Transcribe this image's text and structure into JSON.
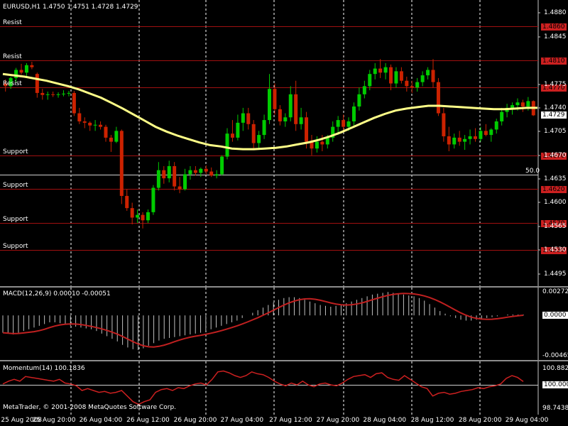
{
  "colors": {
    "background": "#000000",
    "bull_candle": "#00cc00",
    "bear_candle": "#cc2200",
    "level_line": "#a01010",
    "ma_line": "#ffff88",
    "macd_signal": "#c02020",
    "momentum_line": "#cc2020",
    "grid": "#ffffff",
    "price_box_red": "#cc2020",
    "text": "#ffffff"
  },
  "main_chart": {
    "header": "EURUSD,H1  1.4750 1.4751 1.4728 1.4729",
    "current_price": "1.4729",
    "ma_label": "50.0",
    "price_ticks": [
      "1.4880",
      "1.4845",
      "1.4775",
      "1.4740",
      "1.4705",
      "1.4670",
      "1.4635",
      "1.4600",
      "1.4565",
      "1.4530",
      "1.4495"
    ],
    "levels": [
      {
        "label": "Resist",
        "value": "1.4860"
      },
      {
        "label": "Resist",
        "value": "1.4810"
      },
      {
        "label": "Resist",
        "value": "1.4770"
      },
      {
        "label": "Support",
        "value": "1.4670"
      },
      {
        "label": "Support",
        "value": "1.4620"
      },
      {
        "label": "Support",
        "value": "1.4570"
      },
      {
        "label": "Support",
        "value": "1.4530"
      }
    ],
    "time_labels": [
      "25 Aug 2008",
      "25 Aug 20:00",
      "26 Aug 04:00",
      "26 Aug 12:00",
      "26 Aug 20:00",
      "27 Aug 04:00",
      "27 Aug 12:00",
      "27 Aug 20:00",
      "28 Aug 04:00",
      "28 Aug 12:00",
      "28 Aug 20:00",
      "29 Aug 04:00"
    ]
  },
  "macd_pane": {
    "title": "MACD(12,26,9) 0.00010 -0.00051",
    "ticks": [
      "0.00272",
      "0.0000",
      "-0.00465"
    ]
  },
  "momentum_pane": {
    "title": "Momentum(14) 100.1836",
    "ticks": [
      "100.8826",
      "100.0000",
      "98.7438"
    ]
  },
  "watermark": "MetaTrader, © 2001-2008 MetaQuotes Software Corp.",
  "chart_data": {
    "type": "candlestick",
    "symbol": "EURUSD",
    "timeframe": "H1",
    "ylim": [
      1.448,
      1.4895
    ],
    "candles": [
      [
        1.4776,
        1.4782,
        1.4764,
        1.4772
      ],
      [
        1.4772,
        1.4786,
        1.4768,
        1.4784
      ],
      [
        1.4784,
        1.4799,
        1.4778,
        1.4796
      ],
      [
        1.4796,
        1.4805,
        1.4789,
        1.4792
      ],
      [
        1.4792,
        1.4806,
        1.4786,
        1.4803
      ],
      [
        1.4803,
        1.4808,
        1.4797,
        1.48
      ],
      [
        1.479,
        1.4792,
        1.4755,
        1.4762
      ],
      [
        1.4762,
        1.4768,
        1.4752,
        1.4759
      ],
      [
        1.4759,
        1.4764,
        1.4752,
        1.476
      ],
      [
        1.476,
        1.4764,
        1.4756,
        1.4759
      ],
      [
        1.4759,
        1.4763,
        1.4755,
        1.476
      ],
      [
        1.476,
        1.4766,
        1.4757,
        1.4761
      ],
      [
        1.4761,
        1.4765,
        1.4757,
        1.4762
      ],
      [
        1.4762,
        1.4765,
        1.4728,
        1.4732
      ],
      [
        1.4732,
        1.474,
        1.4716,
        1.472
      ],
      [
        1.472,
        1.4726,
        1.471,
        1.4718
      ],
      [
        1.4718,
        1.472,
        1.4706,
        1.4714
      ],
      [
        1.4714,
        1.4722,
        1.4706,
        1.4715
      ],
      [
        1.4715,
        1.472,
        1.4708,
        1.4712
      ],
      [
        1.4712,
        1.4715,
        1.469,
        1.4696
      ],
      [
        1.4696,
        1.47,
        1.4675,
        1.469
      ],
      [
        1.469,
        1.4712,
        1.4688,
        1.4706
      ],
      [
        1.4706,
        1.4708,
        1.4598,
        1.461
      ],
      [
        1.461,
        1.462,
        1.4588,
        1.4592
      ],
      [
        1.4592,
        1.46,
        1.4568,
        1.4578
      ],
      [
        1.4578,
        1.459,
        1.457,
        1.4582
      ],
      [
        1.4582,
        1.4586,
        1.4562,
        1.4574
      ],
      [
        1.4574,
        1.459,
        1.457,
        1.4586
      ],
      [
        1.4586,
        1.4626,
        1.4582,
        1.4622
      ],
      [
        1.4622,
        1.466,
        1.4618,
        1.4648
      ],
      [
        1.4648,
        1.4654,
        1.4628,
        1.4636
      ],
      [
        1.4636,
        1.4662,
        1.463,
        1.4654
      ],
      [
        1.4654,
        1.466,
        1.4618,
        1.4624
      ],
      [
        1.4624,
        1.4638,
        1.4614,
        1.462
      ],
      [
        1.462,
        1.465,
        1.4618,
        1.4642
      ],
      [
        1.4642,
        1.4654,
        1.4634,
        1.4648
      ],
      [
        1.4648,
        1.4654,
        1.464,
        1.4644
      ],
      [
        1.4644,
        1.4652,
        1.4638,
        1.465
      ],
      [
        1.465,
        1.4655,
        1.4642,
        1.4646
      ],
      [
        1.4646,
        1.4652,
        1.4638,
        1.464
      ],
      [
        1.464,
        1.4648,
        1.4636,
        1.4642
      ],
      [
        1.4642,
        1.467,
        1.464,
        1.4668
      ],
      [
        1.4668,
        1.471,
        1.4664,
        1.4702
      ],
      [
        1.4702,
        1.4722,
        1.469,
        1.4696
      ],
      [
        1.4696,
        1.473,
        1.4692,
        1.4718
      ],
      [
        1.4718,
        1.474,
        1.4706,
        1.4732
      ],
      [
        1.4732,
        1.474,
        1.4708,
        1.4716
      ],
      [
        1.4716,
        1.4722,
        1.468,
        1.4688
      ],
      [
        1.4688,
        1.4706,
        1.4678,
        1.47
      ],
      [
        1.47,
        1.473,
        1.4694,
        1.4722
      ],
      [
        1.4722,
        1.479,
        1.4716,
        1.4768
      ],
      [
        1.4768,
        1.4776,
        1.473,
        1.4738
      ],
      [
        1.4738,
        1.4744,
        1.4714,
        1.472
      ],
      [
        1.472,
        1.4732,
        1.4712,
        1.4726
      ],
      [
        1.4726,
        1.4772,
        1.472,
        1.476
      ],
      [
        1.476,
        1.478,
        1.4706,
        1.4716
      ],
      [
        1.4716,
        1.474,
        1.4708,
        1.4726
      ],
      [
        1.4726,
        1.4734,
        1.468,
        1.469
      ],
      [
        1.469,
        1.47,
        1.467,
        1.468
      ],
      [
        1.468,
        1.4698,
        1.4674,
        1.469
      ],
      [
        1.469,
        1.47,
        1.4676,
        1.4686
      ],
      [
        1.4686,
        1.47,
        1.468,
        1.4696
      ],
      [
        1.4696,
        1.472,
        1.469,
        1.4712
      ],
      [
        1.4712,
        1.4728,
        1.47,
        1.4722
      ],
      [
        1.4722,
        1.473,
        1.4706,
        1.4712
      ],
      [
        1.4712,
        1.4726,
        1.4706,
        1.472
      ],
      [
        1.472,
        1.4748,
        1.4714,
        1.4742
      ],
      [
        1.4742,
        1.477,
        1.4736,
        1.476
      ],
      [
        1.476,
        1.478,
        1.4754,
        1.4772
      ],
      [
        1.4772,
        1.4796,
        1.4766,
        1.479
      ],
      [
        1.479,
        1.4806,
        1.4782,
        1.4798
      ],
      [
        1.4798,
        1.4812,
        1.4784,
        1.4792
      ],
      [
        1.4792,
        1.4806,
        1.4782,
        1.48
      ],
      [
        1.48,
        1.4804,
        1.4766,
        1.4776
      ],
      [
        1.4776,
        1.48,
        1.477,
        1.4794
      ],
      [
        1.4794,
        1.48,
        1.4776,
        1.478
      ],
      [
        1.478,
        1.4786,
        1.4764,
        1.4772
      ],
      [
        1.4772,
        1.478,
        1.4762,
        1.477
      ],
      [
        1.477,
        1.4784,
        1.4764,
        1.4778
      ],
      [
        1.4778,
        1.4794,
        1.4772,
        1.4788
      ],
      [
        1.4788,
        1.48,
        1.4782,
        1.4796
      ],
      [
        1.4796,
        1.4812,
        1.477,
        1.4778
      ],
      [
        1.4778,
        1.4784,
        1.4728,
        1.4732
      ],
      [
        1.4732,
        1.474,
        1.469,
        1.4698
      ],
      [
        1.4698,
        1.4712,
        1.4676,
        1.4686
      ],
      [
        1.4686,
        1.4702,
        1.468,
        1.4696
      ],
      [
        1.4696,
        1.4706,
        1.4684,
        1.469
      ],
      [
        1.469,
        1.47,
        1.4678,
        1.4694
      ],
      [
        1.4694,
        1.4708,
        1.4686,
        1.4698
      ],
      [
        1.4698,
        1.471,
        1.469,
        1.4694
      ],
      [
        1.4694,
        1.4712,
        1.469,
        1.4706
      ],
      [
        1.4706,
        1.4716,
        1.4698,
        1.47
      ],
      [
        1.47,
        1.471,
        1.469,
        1.4708
      ],
      [
        1.4708,
        1.4724,
        1.4702,
        1.472
      ],
      [
        1.472,
        1.474,
        1.4714,
        1.4734
      ],
      [
        1.4734,
        1.4746,
        1.4726,
        1.474
      ],
      [
        1.474,
        1.4748,
        1.473,
        1.4744
      ],
      [
        1.4744,
        1.4754,
        1.4736,
        1.4748
      ],
      [
        1.4748,
        1.4752,
        1.4734,
        1.4742
      ],
      [
        1.4742,
        1.4756,
        1.4736,
        1.475
      ],
      [
        1.475,
        1.4751,
        1.4728,
        1.4729
      ]
    ],
    "ma50": [
      1.479,
      1.4788,
      1.4786,
      1.4783,
      1.478,
      1.4776,
      1.4772,
      1.4767,
      1.4761,
      1.4755,
      1.4747,
      1.4739,
      1.473,
      1.4721,
      1.4712,
      1.4705,
      1.4699,
      1.4694,
      1.4689,
      1.4685,
      1.4683,
      1.468,
      1.4679,
      1.4679,
      1.468,
      1.4681,
      1.4683,
      1.4686,
      1.4689,
      1.4693,
      1.4698,
      1.4704,
      1.4711,
      1.4718,
      1.4725,
      1.4731,
      1.4736,
      1.4739,
      1.4741,
      1.4743,
      1.4743,
      1.4742,
      1.4741,
      1.474,
      1.4739,
      1.4738,
      1.4738,
      1.4739,
      1.474,
      1.474
    ],
    "macd_histogram": [
      -0.002,
      -0.0021,
      -0.0022,
      -0.002,
      -0.0018,
      -0.0016,
      -0.0014,
      -0.0012,
      -0.001,
      -0.0008,
      -0.0008,
      -0.0009,
      -0.001,
      -0.0012,
      -0.0013,
      -0.0014,
      -0.0015,
      -0.0016,
      -0.0018,
      -0.0021,
      -0.0024,
      -0.0027,
      -0.003,
      -0.0034,
      -0.0037,
      -0.0039,
      -0.004,
      -0.0038,
      -0.0035,
      -0.0032,
      -0.0029,
      -0.0027,
      -0.0026,
      -0.0025,
      -0.0024,
      -0.0023,
      -0.0022,
      -0.0021,
      -0.002,
      -0.0018,
      -0.0016,
      -0.0014,
      -0.0012,
      -0.001,
      -0.0008,
      -0.0006,
      -0.0003,
      0.0,
      0.0003,
      0.0006,
      0.0009,
      0.0012,
      0.0015,
      0.0018,
      0.002,
      0.0021,
      0.0021,
      0.002,
      0.0018,
      0.0016,
      0.0014,
      0.0012,
      0.0011,
      0.001,
      0.0011,
      0.0012,
      0.0014,
      0.0016,
      0.0018,
      0.002,
      0.0022,
      0.0024,
      0.0025,
      0.0026,
      0.0027,
      0.0026,
      0.0025,
      0.0024,
      0.0023,
      0.0022,
      0.002,
      0.0017,
      0.0013,
      0.0009,
      0.0005,
      0.0002,
      -0.0001,
      -0.0003,
      -0.0005,
      -0.0006,
      -0.0006,
      -0.0005,
      -0.0004,
      -0.0003,
      -0.0002,
      -0.0001,
      0.0,
      0.0001,
      0.0001,
      0.0001,
      0.0001
    ],
    "momentum": [
      100.05,
      100.2,
      100.3,
      100.2,
      100.45,
      100.4,
      100.35,
      100.3,
      100.25,
      100.2,
      100.3,
      100.1,
      100.05,
      99.95,
      99.7,
      99.8,
      99.7,
      99.6,
      99.65,
      99.55,
      99.6,
      99.7,
      99.4,
      99.1,
      98.95,
      99.1,
      99.2,
      99.6,
      99.75,
      99.8,
      99.7,
      99.85,
      99.8,
      99.95,
      100.05,
      100.1,
      100.0,
      100.3,
      100.7,
      100.75,
      100.65,
      100.5,
      100.4,
      100.5,
      100.7,
      100.6,
      100.55,
      100.4,
      100.2,
      100.05,
      99.95,
      100.1,
      100.0,
      100.2,
      100.0,
      99.9,
      100.05,
      100.1,
      100.0,
      99.95,
      100.1,
      100.3,
      100.45,
      100.5,
      100.55,
      100.4,
      100.6,
      100.65,
      100.4,
      100.3,
      100.25,
      100.5,
      100.3,
      100.1,
      99.9,
      99.8,
      99.4,
      99.55,
      99.6,
      99.5,
      99.55,
      99.65,
      99.7,
      99.75,
      99.85,
      99.8,
      99.9,
      99.95,
      100.05,
      100.35,
      100.5,
      100.4,
      100.18
    ]
  }
}
